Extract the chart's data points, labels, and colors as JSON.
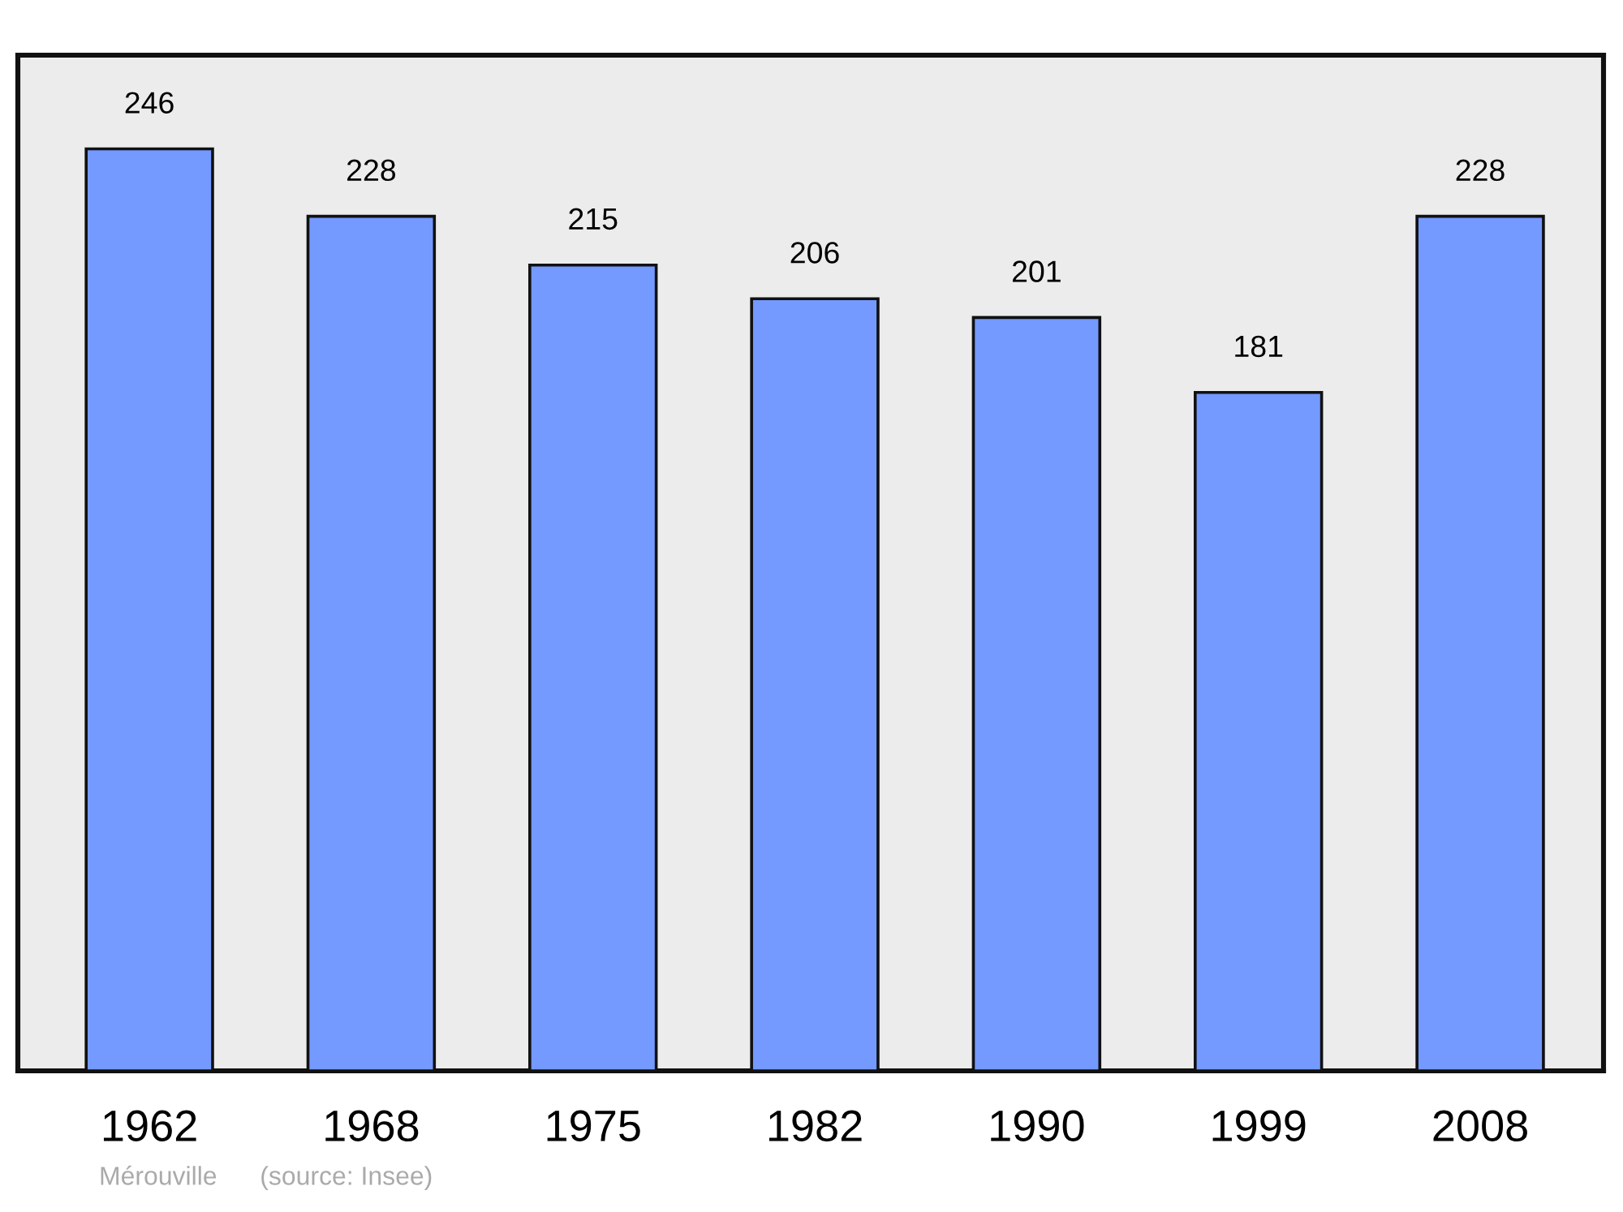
{
  "chart_data": {
    "type": "bar",
    "categories": [
      "1962",
      "1968",
      "1975",
      "1982",
      "1990",
      "1999",
      "2008"
    ],
    "values": [
      246,
      228,
      215,
      206,
      201,
      181,
      228
    ],
    "color": "#7499ff",
    "ylim": [
      0,
      271
    ],
    "tick_labels": "x",
    "data_labels": true,
    "annotations": [
      "Mérouville",
      "(source: Insee)"
    ]
  }
}
